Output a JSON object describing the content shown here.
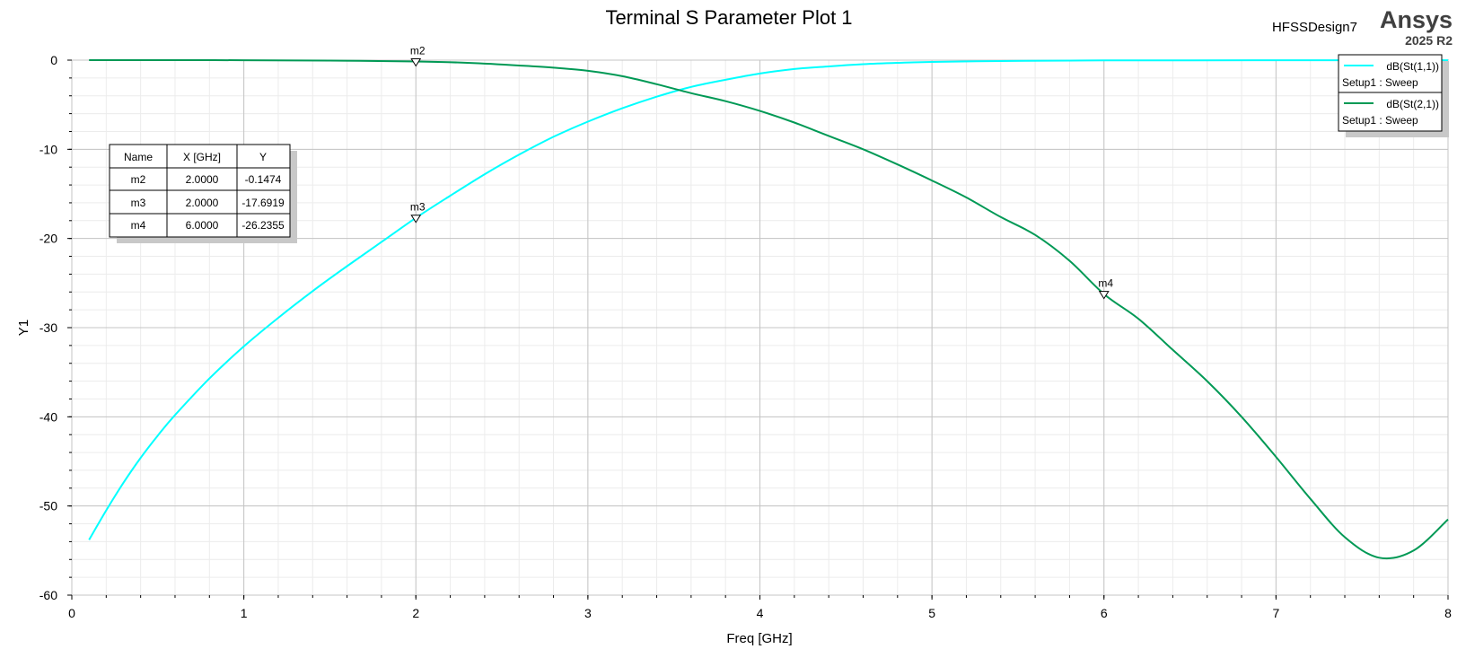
{
  "header": {
    "title": "Terminal S Parameter Plot 1",
    "design_name": "HFSSDesign7",
    "brand": "Ansys",
    "release": "2025 R2"
  },
  "chart_data": {
    "type": "line",
    "title": "Terminal S Parameter Plot 1",
    "xlabel": "Freq [GHz]",
    "ylabel": "Y1",
    "xlim": [
      0,
      8
    ],
    "ylim": [
      -60,
      0
    ],
    "xticks": [
      0,
      1,
      2,
      3,
      4,
      5,
      6,
      7,
      8
    ],
    "yticks": [
      0,
      -10,
      -20,
      -30,
      -40,
      -50,
      -60
    ],
    "x_tick_labels": [
      "0",
      "1",
      "2",
      "3",
      "4",
      "5",
      "6",
      "7",
      "8"
    ],
    "y_tick_labels": [
      "0",
      "-10",
      "-20",
      "-30",
      "-40",
      "-50",
      "-60"
    ],
    "grid": true,
    "legend_position": "top-right",
    "series": [
      {
        "name": "dB(St(1,1))",
        "setup": "Setup1 : Sweep",
        "color": "#00ffff",
        "x": [
          0.1,
          0.2,
          0.3,
          0.4,
          0.5,
          0.6,
          0.8,
          1.0,
          1.2,
          1.4,
          1.6,
          1.8,
          2.0,
          2.2,
          2.4,
          2.6,
          2.8,
          3.0,
          3.2,
          3.4,
          3.6,
          3.8,
          4.0,
          4.2,
          4.4,
          4.6,
          4.8,
          5.0,
          5.4,
          5.8,
          6.0,
          6.5,
          7.0,
          7.5,
          8.0
        ],
        "y": [
          -53.8,
          -50.5,
          -47.4,
          -44.6,
          -42.1,
          -39.8,
          -35.7,
          -32.1,
          -28.9,
          -25.9,
          -23.1,
          -20.4,
          -17.69,
          -15.2,
          -12.8,
          -10.6,
          -8.6,
          -6.9,
          -5.4,
          -4.1,
          -3.0,
          -2.2,
          -1.5,
          -1.0,
          -0.7,
          -0.45,
          -0.3,
          -0.2,
          -0.1,
          -0.05,
          -0.03,
          -0.02,
          -0.01,
          -0.01,
          -0.01
        ]
      },
      {
        "name": "dB(St(2,1))",
        "setup": "Setup1 : Sweep",
        "color": "#009955",
        "x": [
          0.1,
          0.5,
          1.0,
          1.5,
          2.0,
          2.3,
          2.6,
          2.8,
          3.0,
          3.2,
          3.4,
          3.6,
          3.8,
          4.0,
          4.2,
          4.4,
          4.6,
          4.8,
          5.0,
          5.2,
          5.4,
          5.6,
          5.8,
          6.0,
          6.2,
          6.4,
          6.6,
          6.8,
          7.0,
          7.2,
          7.4,
          7.6,
          7.8,
          8.0
        ],
        "y": [
          0.0,
          0.0,
          -0.01,
          -0.05,
          -0.1474,
          -0.3,
          -0.6,
          -0.85,
          -1.2,
          -1.8,
          -2.7,
          -3.7,
          -4.6,
          -5.7,
          -7.0,
          -8.5,
          -10.0,
          -11.7,
          -13.5,
          -15.4,
          -17.6,
          -19.6,
          -22.5,
          -26.2355,
          -29.0,
          -32.5,
          -36.0,
          -40.0,
          -44.5,
          -49.2,
          -53.5,
          -55.8,
          -55.0,
          -51.5
        ]
      }
    ],
    "markers": [
      {
        "name": "m2",
        "x": 2.0,
        "y": -0.1474
      },
      {
        "name": "m3",
        "x": 2.0,
        "y": -17.6919
      },
      {
        "name": "m4",
        "x": 6.0,
        "y": -26.2355
      }
    ]
  },
  "marker_table": {
    "headers": [
      "Name",
      "X [GHz]",
      "Y"
    ],
    "rows": [
      [
        "m2",
        "2.0000",
        "-0.1474"
      ],
      [
        "m3",
        "2.0000",
        "-17.6919"
      ],
      [
        "m4",
        "6.0000",
        "-26.2355"
      ]
    ]
  },
  "legend": {
    "items": [
      {
        "name": "dB(St(1,1))",
        "setup": "Setup1 : Sweep",
        "color": "#00ffff"
      },
      {
        "name": "dB(St(2,1))",
        "setup": "Setup1 : Sweep",
        "color": "#009955"
      }
    ]
  }
}
